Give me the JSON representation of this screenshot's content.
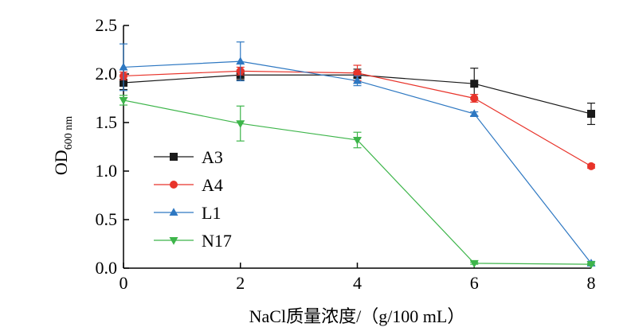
{
  "chart_data": {
    "type": "line",
    "x": [
      0,
      2,
      4,
      6,
      8
    ],
    "x_ticks": [
      "0",
      "2",
      "4",
      "6",
      "8"
    ],
    "y_ticks": [
      "0.0",
      "0.5",
      "1.0",
      "1.5",
      "2.0",
      "2.5"
    ],
    "xlim": [
      0,
      8
    ],
    "ylim": [
      0,
      2.5
    ],
    "xlabel": "NaCl质量浓度/（g/100 mL）",
    "ylabel": {
      "main": "OD",
      "sub": "600 nm"
    },
    "legend_position": "left",
    "grid": false,
    "series": [
      {
        "name": "A3",
        "color": "#1a1a1a",
        "marker": "square",
        "values": [
          1.91,
          1.99,
          1.99,
          1.9,
          1.59
        ],
        "errors": [
          0.07,
          0.05,
          0.06,
          0.16,
          0.11
        ]
      },
      {
        "name": "A4",
        "color": "#e8332a",
        "marker": "circle",
        "values": [
          1.98,
          2.03,
          2.01,
          1.75,
          1.05
        ],
        "errors": [
          0.04,
          0.04,
          0.08,
          0.04,
          0.02
        ]
      },
      {
        "name": "L1",
        "color": "#2e78c2",
        "marker": "triangle-up",
        "values": [
          2.07,
          2.13,
          1.93,
          1.59,
          0.05
        ],
        "errors": [
          0.24,
          0.2,
          0.05,
          0.02,
          0.02
        ]
      },
      {
        "name": "N17",
        "color": "#3db54a",
        "marker": "triangle-down",
        "values": [
          1.73,
          1.49,
          1.32,
          0.05,
          0.04
        ],
        "errors": [
          0.05,
          0.18,
          0.08,
          0.01,
          0.01
        ]
      }
    ]
  }
}
